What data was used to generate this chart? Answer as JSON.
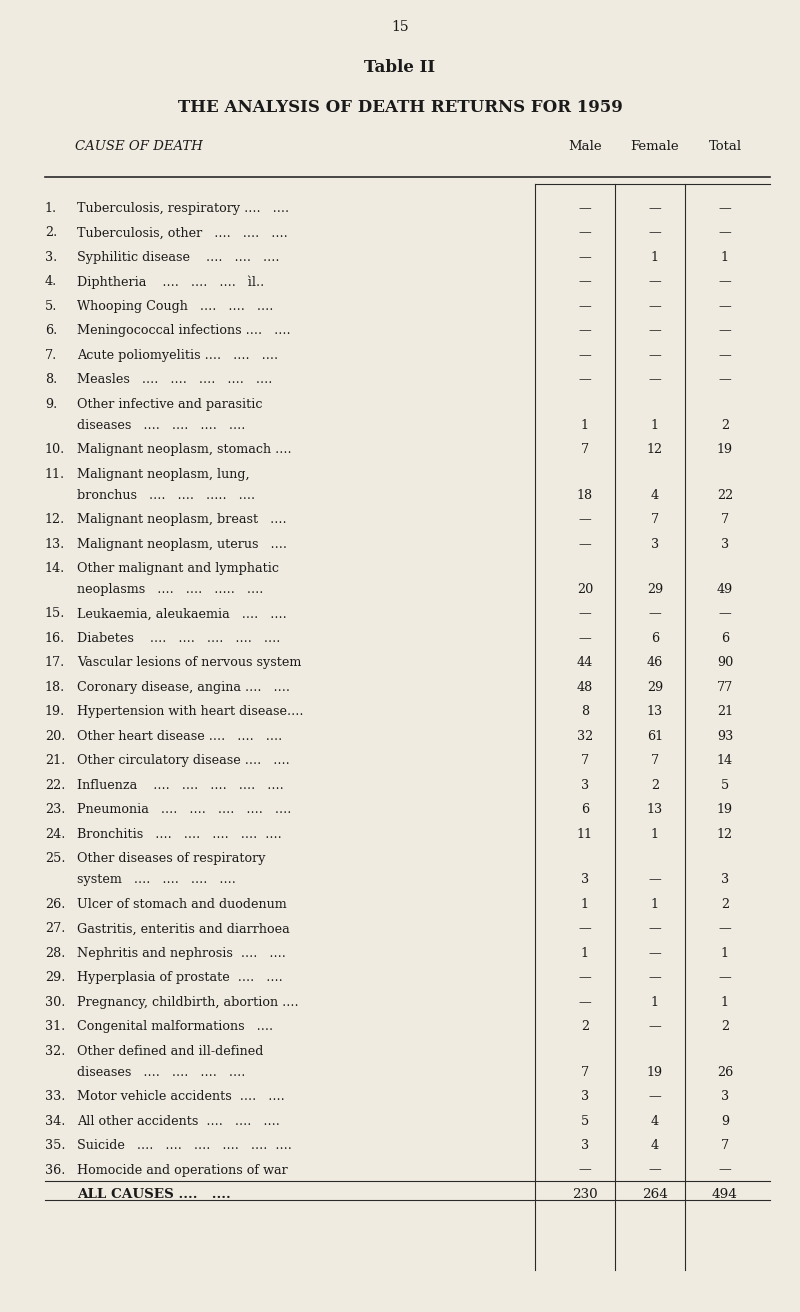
{
  "page_number": "15",
  "table_title": "Table II",
  "table_subtitle": "THE ANALYSIS OF DEATH RETURNS FOR 1959",
  "col_header": "CAUSE OF DEATH",
  "col_male": "Male",
  "col_female": "Female",
  "col_total": "Total",
  "background_color": "#f0ebe0",
  "rows": [
    {
      "num": "1.",
      "label": "Tuberculosis, respiratory ....   ....",
      "male": "—",
      "female": "—",
      "total": "—",
      "wrap": false
    },
    {
      "num": "2.",
      "label": "Tuberculosis, other   ....   ....   ....",
      "male": "—",
      "female": "—",
      "total": "—",
      "wrap": false
    },
    {
      "num": "3.",
      "label": "Syphilitic disease    ....   ....   ....",
      "male": "—",
      "female": "1",
      "total": "1",
      "wrap": false
    },
    {
      "num": "4.",
      "label": "Diphtheria    ....   ....   ....   ìl..",
      "male": "—",
      "female": "—",
      "total": "—",
      "wrap": false
    },
    {
      "num": "5.",
      "label": "Whooping Cough   ....   ....   ....",
      "male": "—",
      "female": "—",
      "total": "—",
      "wrap": false
    },
    {
      "num": "6.",
      "label": "Meningococcal infections ....   ....",
      "male": "—",
      "female": "—",
      "total": "—",
      "wrap": false
    },
    {
      "num": "7.",
      "label": "Acute poliomyelitis ....   ....   ....",
      "male": "—",
      "female": "—",
      "total": "—",
      "wrap": false
    },
    {
      "num": "8.",
      "label": "Measles   ....   ....   ....   ....   ....",
      "male": "—",
      "female": "—",
      "total": "—",
      "wrap": false
    },
    {
      "num": "9.",
      "label": "Other infective and parasitic\n       diseases   ....   ....   ....   ....",
      "male": "1",
      "female": "1",
      "total": "2",
      "wrap": true
    },
    {
      "num": "10.",
      "label": "Malignant neoplasm, stomach ....",
      "male": "7",
      "female": "12",
      "total": "19",
      "wrap": false
    },
    {
      "num": "11.",
      "label": "Malignant neoplasm, lung,\n       bronchus   ....   ....   .....   ....",
      "male": "18",
      "female": "4",
      "total": "22",
      "wrap": true
    },
    {
      "num": "12.",
      "label": "Malignant neoplasm, breast   ....",
      "male": "—",
      "female": "7",
      "total": "7",
      "wrap": false
    },
    {
      "num": "13.",
      "label": "Malignant neoplasm, uterus   ....",
      "male": "—",
      "female": "3",
      "total": "3",
      "wrap": false
    },
    {
      "num": "14.",
      "label": "Other malignant and lymphatic\n       neoplasms   ....   ....   .....   ....",
      "male": "20",
      "female": "29",
      "total": "49",
      "wrap": true
    },
    {
      "num": "15.",
      "label": "Leukaemia, aleukaemia   ....   ....",
      "male": "—",
      "female": "—",
      "total": "—",
      "wrap": false
    },
    {
      "num": "16.",
      "label": "Diabetes    ....   ....   ....   ....   ....",
      "male": "—",
      "female": "6",
      "total": "6",
      "wrap": false
    },
    {
      "num": "17.",
      "label": "Vascular lesions of nervous system",
      "male": "44",
      "female": "46",
      "total": "90",
      "wrap": false
    },
    {
      "num": "18.",
      "label": "Coronary disease, angina ....   ....",
      "male": "48",
      "female": "29",
      "total": "77",
      "wrap": false
    },
    {
      "num": "19.",
      "label": "Hypertension with heart disease....",
      "male": "8",
      "female": "13",
      "total": "21",
      "wrap": false
    },
    {
      "num": "20.",
      "label": "Other heart disease ....   ....   ....",
      "male": "32",
      "female": "61",
      "total": "93",
      "wrap": false
    },
    {
      "num": "21.",
      "label": "Other circulatory disease ....   ....",
      "male": "7",
      "female": "7",
      "total": "14",
      "wrap": false
    },
    {
      "num": "22.",
      "label": "Influenza    ....   ....   ....   ....   ....",
      "male": "3",
      "female": "2",
      "total": "5",
      "wrap": false
    },
    {
      "num": "23.",
      "label": "Pneumonia   ....   ....   ....   ....   ....",
      "male": "6",
      "female": "13",
      "total": "19",
      "wrap": false
    },
    {
      "num": "24.",
      "label": "Bronchitis   ....   ....   ....   ....  ....",
      "male": "11",
      "female": "1",
      "total": "12",
      "wrap": false
    },
    {
      "num": "25.",
      "label": "Other diseases of respiratory\n       system   ....   ....   ....   ....",
      "male": "3",
      "female": "—",
      "total": "3",
      "wrap": true
    },
    {
      "num": "26.",
      "label": "Ulcer of stomach and duodenum",
      "male": "1",
      "female": "1",
      "total": "2",
      "wrap": false
    },
    {
      "num": "27.",
      "label": "Gastritis, enteritis and diarrhoea",
      "male": "—",
      "female": "—",
      "total": "—",
      "wrap": false
    },
    {
      "num": "28.",
      "label": "Nephritis and nephrosis  ....   ....",
      "male": "1",
      "female": "—",
      "total": "1",
      "wrap": false
    },
    {
      "num": "29.",
      "label": "Hyperplasia of prostate  ....   ....",
      "male": "—",
      "female": "—",
      "total": "—",
      "wrap": false
    },
    {
      "num": "30.",
      "label": "Pregnancy, childbirth, abortion ....",
      "male": "—",
      "female": "1",
      "total": "1",
      "wrap": false
    },
    {
      "num": "31.",
      "label": "Congenital malformations   ....",
      "male": "2",
      "female": "—",
      "total": "2",
      "wrap": false
    },
    {
      "num": "32.",
      "label": "Other defined and ill-defined\n       diseases   ....   ....   ....   ....",
      "male": "7",
      "female": "19",
      "total": "26",
      "wrap": true
    },
    {
      "num": "33.",
      "label": "Motor vehicle accidents  ....   ....",
      "male": "3",
      "female": "—",
      "total": "3",
      "wrap": false
    },
    {
      "num": "34.",
      "label": "All other accidents  ....   ....   ....",
      "male": "5",
      "female": "4",
      "total": "9",
      "wrap": false
    },
    {
      "num": "35.",
      "label": "Suicide   ....   ....   ....   ....   ....  ....",
      "male": "3",
      "female": "4",
      "total": "7",
      "wrap": false
    },
    {
      "num": "36.",
      "label": "Homocide and operations of war",
      "male": "—",
      "female": "—",
      "total": "—",
      "wrap": false
    }
  ],
  "footer_label": "ALL CAUSES ....   ....",
  "footer_male": "230",
  "footer_female": "264",
  "footer_total": "494"
}
